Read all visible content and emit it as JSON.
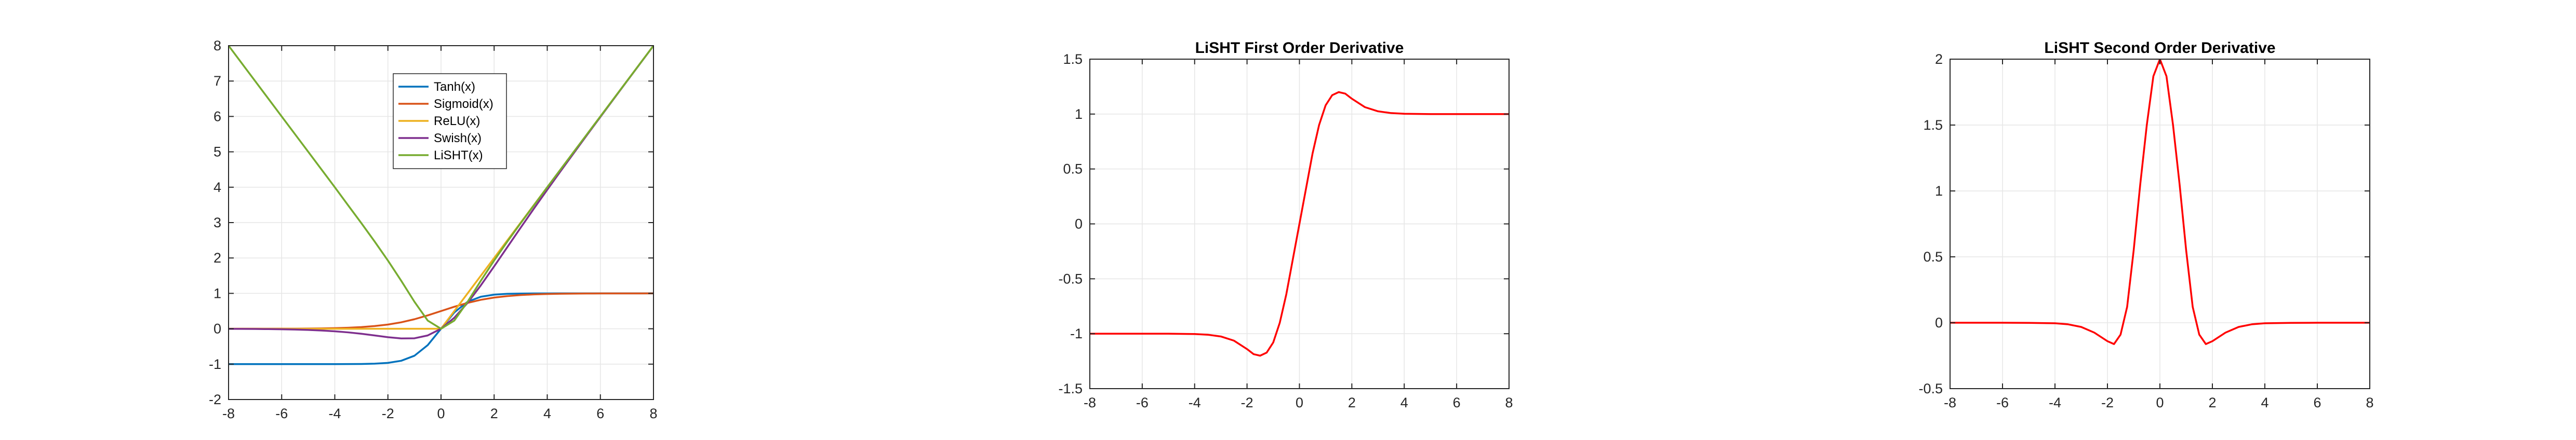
{
  "chart_data": [
    {
      "type": "line",
      "title": "",
      "xlabel": "",
      "ylabel": "",
      "xlim": [
        -8,
        8
      ],
      "ylim": [
        -2,
        8
      ],
      "xticks": [
        -8,
        -6,
        -4,
        -2,
        0,
        2,
        4,
        6,
        8
      ],
      "yticks": [
        -2,
        -1,
        0,
        1,
        2,
        3,
        4,
        5,
        6,
        7,
        8
      ],
      "grid": true,
      "legend_position": "top-center",
      "x": [
        -8,
        -7.5,
        -7,
        -6.5,
        -6,
        -5.5,
        -5,
        -4.5,
        -4,
        -3.5,
        -3,
        -2.5,
        -2,
        -1.5,
        -1,
        -0.5,
        0,
        0.5,
        1,
        1.5,
        2,
        2.5,
        3,
        3.5,
        4,
        4.5,
        5,
        5.5,
        6,
        6.5,
        7,
        7.5,
        8
      ],
      "series": [
        {
          "name": "Tanh(x)",
          "color": "#0072BD",
          "values": [
            -1.0,
            -1.0,
            -1.0,
            -1.0,
            -1.0,
            -1.0,
            -1.0,
            -1.0,
            -0.999,
            -0.998,
            -0.995,
            -0.987,
            -0.964,
            -0.905,
            -0.762,
            -0.462,
            0.0,
            0.462,
            0.762,
            0.905,
            0.964,
            0.987,
            0.995,
            0.998,
            0.999,
            1.0,
            1.0,
            1.0,
            1.0,
            1.0,
            1.0,
            1.0,
            1.0
          ]
        },
        {
          "name": "Sigmoid(x)",
          "color": "#D95319",
          "values": [
            0.0003,
            0.0006,
            0.0009,
            0.0015,
            0.0025,
            0.0041,
            0.0067,
            0.011,
            0.018,
            0.029,
            0.047,
            0.076,
            0.119,
            0.182,
            0.269,
            0.378,
            0.5,
            0.622,
            0.731,
            0.818,
            0.881,
            0.924,
            0.953,
            0.971,
            0.982,
            0.989,
            0.993,
            0.996,
            0.998,
            0.998,
            0.999,
            0.999,
            1.0
          ]
        },
        {
          "name": "ReLU(x)",
          "color": "#EDB120",
          "values": [
            0,
            0,
            0,
            0,
            0,
            0,
            0,
            0,
            0,
            0,
            0,
            0,
            0,
            0,
            0,
            0,
            0,
            0.5,
            1,
            1.5,
            2,
            2.5,
            3,
            3.5,
            4,
            4.5,
            5,
            5.5,
            6,
            6.5,
            7,
            7.5,
            8
          ]
        },
        {
          "name": "Swish(x)",
          "color": "#7E2F8E",
          "values": [
            -0.003,
            -0.004,
            -0.006,
            -0.01,
            -0.015,
            -0.023,
            -0.033,
            -0.05,
            -0.072,
            -0.102,
            -0.142,
            -0.189,
            -0.238,
            -0.273,
            -0.269,
            -0.189,
            0.0,
            0.311,
            0.731,
            1.227,
            1.762,
            2.311,
            2.858,
            3.397,
            3.928,
            4.45,
            4.966,
            5.478,
            5.985,
            6.49,
            6.994,
            7.496,
            7.997
          ]
        },
        {
          "name": "LiSHT(x)",
          "color": "#77AC30",
          "values": [
            8.0,
            7.5,
            7.0,
            6.5,
            6.0,
            5.5,
            5.0,
            4.5,
            4.0,
            3.49,
            2.985,
            2.466,
            1.928,
            1.358,
            0.762,
            0.231,
            0.0,
            0.231,
            0.762,
            1.358,
            1.928,
            2.466,
            2.985,
            3.49,
            4.0,
            4.5,
            5.0,
            5.5,
            6.0,
            6.5,
            7.0,
            7.5,
            8.0
          ]
        }
      ]
    },
    {
      "type": "line",
      "title": "LiSHT First Order Derivative",
      "xlabel": "",
      "ylabel": "",
      "xlim": [
        -8,
        8
      ],
      "ylim": [
        -1.5,
        1.5
      ],
      "xticks": [
        -8,
        -6,
        -4,
        -2,
        0,
        2,
        4,
        6,
        8
      ],
      "yticks": [
        -1.5,
        -1,
        -0.5,
        0,
        0.5,
        1,
        1.5
      ],
      "grid": true,
      "x": [
        -8,
        -7,
        -6,
        -5,
        -4,
        -3.5,
        -3,
        -2.5,
        -2,
        -1.75,
        -1.5,
        -1.25,
        -1,
        -0.75,
        -0.5,
        -0.25,
        0,
        0.25,
        0.5,
        0.75,
        1,
        1.25,
        1.5,
        1.75,
        2,
        2.5,
        3,
        3.5,
        4,
        5,
        6,
        7,
        8
      ],
      "series": [
        {
          "color": "#FF0000",
          "values": [
            -1.0,
            -1.0,
            -1.0,
            -1.0,
            -1.003,
            -1.009,
            -1.025,
            -1.063,
            -1.14,
            -1.186,
            -1.2,
            -1.172,
            -1.08,
            -0.9,
            -0.64,
            -0.32,
            0.0,
            0.32,
            0.64,
            0.9,
            1.08,
            1.172,
            1.2,
            1.186,
            1.14,
            1.063,
            1.025,
            1.009,
            1.003,
            1.0,
            1.0,
            1.0,
            1.0
          ]
        }
      ]
    },
    {
      "type": "line",
      "title": "LiSHT Second Order Derivative",
      "xlabel": "",
      "ylabel": "",
      "xlim": [
        -8,
        8
      ],
      "ylim": [
        -0.5,
        2
      ],
      "xticks": [
        -8,
        -6,
        -4,
        -2,
        0,
        2,
        4,
        6,
        8
      ],
      "yticks": [
        -0.5,
        0,
        0.5,
        1,
        1.5,
        2
      ],
      "grid": true,
      "x": [
        -8,
        -7,
        -6,
        -5,
        -4,
        -3.5,
        -3,
        -2.5,
        -2,
        -1.75,
        -1.5,
        -1.25,
        -1,
        -0.75,
        -0.5,
        -0.25,
        0,
        0.25,
        0.5,
        0.75,
        1,
        1.25,
        1.5,
        1.75,
        2,
        2.5,
        3,
        3.5,
        4,
        5,
        6,
        7,
        8
      ],
      "series": [
        {
          "color": "#FF0000",
          "values": [
            0.0,
            0.0,
            0.0,
            -0.001,
            -0.004,
            -0.012,
            -0.032,
            -0.075,
            -0.14,
            -0.162,
            -0.09,
            0.12,
            0.55,
            1.05,
            1.5,
            1.87,
            2.0,
            1.87,
            1.5,
            1.05,
            0.55,
            0.12,
            -0.09,
            -0.162,
            -0.14,
            -0.075,
            -0.032,
            -0.012,
            -0.004,
            -0.001,
            0.0,
            0.0,
            0.0
          ]
        }
      ]
    }
  ]
}
